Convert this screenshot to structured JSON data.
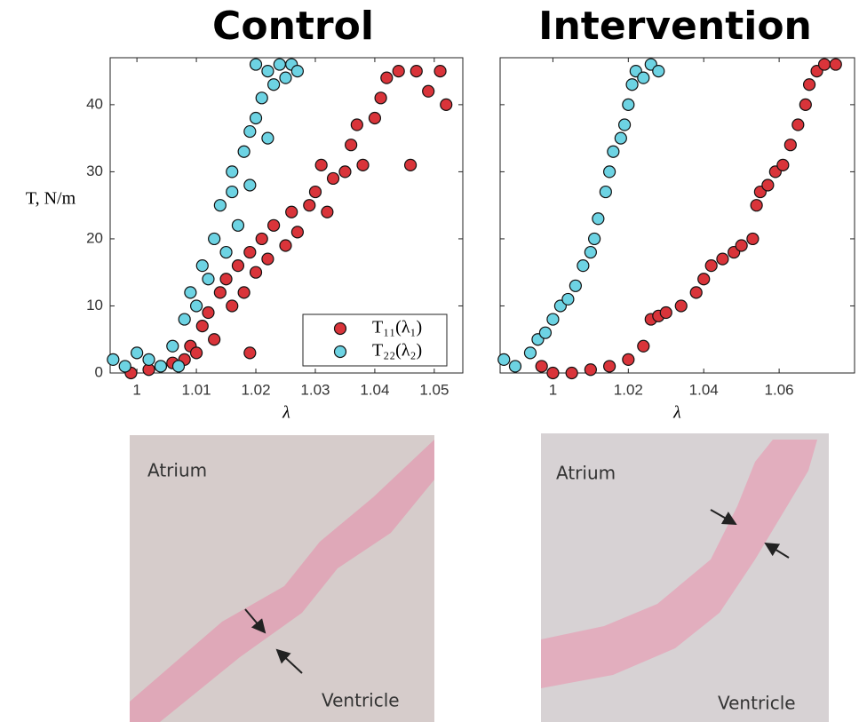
{
  "chart_data": [
    {
      "type": "scatter",
      "title": "Control",
      "xlabel": "λ",
      "ylabel": "T, N/m",
      "xlim": [
        0.9955,
        1.0548
      ],
      "ylim": [
        0,
        47
      ],
      "xticks": [
        1,
        1.01,
        1.02,
        1.03,
        1.04,
        1.05
      ],
      "yticks": [
        0,
        10,
        20,
        30,
        40
      ],
      "ytick_labels": true,
      "legend": "lower right",
      "series": [
        {
          "name": "T₁₁(λ₁)",
          "color": "#d9343a",
          "x": [
            0.999,
            1.002,
            1.004,
            1.006,
            1.008,
            1.009,
            1.01,
            1.011,
            1.012,
            1.013,
            1.014,
            1.015,
            1.016,
            1.017,
            1.018,
            1.019,
            1.019,
            1.02,
            1.021,
            1.022,
            1.023,
            1.025,
            1.026,
            1.027,
            1.029,
            1.03,
            1.031,
            1.032,
            1.033,
            1.035,
            1.036,
            1.037,
            1.038,
            1.04,
            1.041,
            1.042,
            1.044,
            1.046,
            1.047,
            1.049,
            1.051,
            1.052
          ],
          "values": [
            0,
            0.5,
            1,
            1.5,
            2,
            4,
            3,
            7,
            9,
            5,
            12,
            14,
            10,
            16,
            12,
            18,
            3,
            15,
            20,
            17,
            22,
            19,
            24,
            21,
            25,
            27,
            31,
            24,
            29,
            30,
            34,
            37,
            31,
            38,
            41,
            44,
            45,
            31,
            45,
            42,
            45,
            40
          ]
        },
        {
          "name": "T₂₂(λ₂)",
          "color": "#6dd3e3",
          "x": [
            0.996,
            0.998,
            1.0,
            1.002,
            1.004,
            1.006,
            1.007,
            1.008,
            1.009,
            1.01,
            1.011,
            1.012,
            1.013,
            1.014,
            1.015,
            1.016,
            1.016,
            1.017,
            1.018,
            1.019,
            1.019,
            1.02,
            1.02,
            1.021,
            1.022,
            1.022,
            1.023,
            1.024,
            1.025,
            1.026,
            1.027
          ],
          "values": [
            2,
            1,
            3,
            2,
            1,
            4,
            1,
            8,
            12,
            10,
            16,
            14,
            20,
            25,
            18,
            27,
            30,
            22,
            33,
            36,
            28,
            38,
            46,
            41,
            35,
            45,
            43,
            46,
            44,
            46,
            45
          ]
        }
      ]
    },
    {
      "type": "scatter",
      "title": "Intervention",
      "xlabel": "λ",
      "xlim": [
        0.986,
        1.08
      ],
      "ylim": [
        0,
        47
      ],
      "xticks": [
        1,
        1.02,
        1.04,
        1.06
      ],
      "yticks": [
        0,
        10,
        20,
        30,
        40
      ],
      "ytick_labels": false,
      "series": [
        {
          "color": "#d9343a",
          "x": [
            0.997,
            1.0,
            1.005,
            1.01,
            1.015,
            1.02,
            1.024,
            1.026,
            1.028,
            1.03,
            1.034,
            1.038,
            1.04,
            1.042,
            1.045,
            1.048,
            1.05,
            1.053,
            1.054,
            1.055,
            1.057,
            1.059,
            1.061,
            1.063,
            1.065,
            1.067,
            1.068,
            1.07,
            1.072,
            1.075
          ],
          "values": [
            1,
            0,
            0,
            0.5,
            1,
            2,
            4,
            8,
            8.5,
            9,
            10,
            12,
            14,
            16,
            17,
            18,
            19,
            20,
            25,
            27,
            28,
            30,
            31,
            34,
            37,
            40,
            43,
            45,
            46,
            46
          ]
        },
        {
          "color": "#6dd3e3",
          "x": [
            0.987,
            0.99,
            0.994,
            0.996,
            0.998,
            1.0,
            1.002,
            1.004,
            1.006,
            1.008,
            1.01,
            1.011,
            1.012,
            1.014,
            1.015,
            1.016,
            1.018,
            1.019,
            1.02,
            1.021,
            1.022,
            1.024,
            1.026,
            1.028
          ],
          "values": [
            2,
            1,
            3,
            5,
            6,
            8,
            10,
            11,
            13,
            16,
            18,
            20,
            23,
            27,
            30,
            33,
            35,
            37,
            40,
            43,
            45,
            44,
            46,
            45
          ]
        }
      ]
    }
  ],
  "images": [
    {
      "labels": [
        "Atrium",
        "Ventricle"
      ]
    },
    {
      "labels": [
        "Atrium",
        "Ventricle"
      ]
    }
  ]
}
